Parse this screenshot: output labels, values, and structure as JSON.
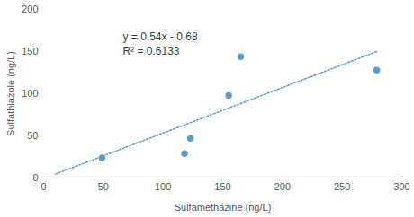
{
  "chart_data": {
    "type": "scatter",
    "x_label": "Sulfamethazine (ng/L)",
    "y_label": "Sulfathiazole (ng/L)",
    "x": [
      49,
      118,
      123,
      155,
      165,
      279
    ],
    "values": [
      24,
      29,
      47,
      98,
      144,
      128
    ],
    "color": "#5b9bd5",
    "marker": "circle",
    "xlim": [
      0,
      300
    ],
    "xticks": [
      0,
      50,
      100,
      150,
      200,
      250,
      300
    ],
    "ylim": [
      0,
      200
    ],
    "yticks": [
      0,
      50,
      100,
      150,
      200
    ],
    "grid": false,
    "trendline": {
      "slope": 0.54,
      "intercept": -0.68,
      "x": [
        10,
        279
      ],
      "line_style": "dotted"
    },
    "annotations": [
      "y = 0.54x - 0.68",
      "R² = 0.6133"
    ]
  }
}
